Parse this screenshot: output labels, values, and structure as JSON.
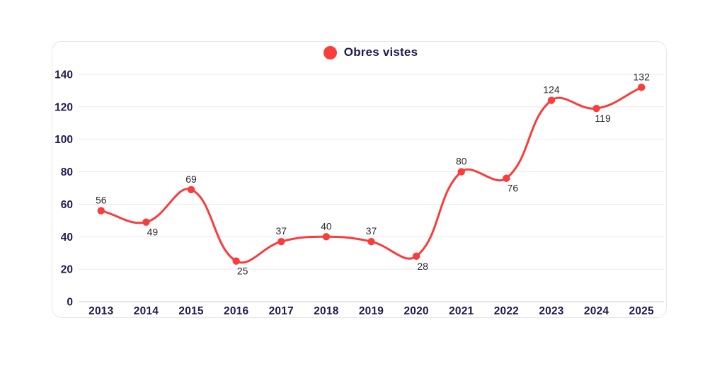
{
  "legend": {
    "label": "Obres vistes"
  },
  "chart_data": {
    "type": "line",
    "title": "",
    "xlabel": "",
    "ylabel": "",
    "categories": [
      "2013",
      "2014",
      "2015",
      "2016",
      "2017",
      "2018",
      "2019",
      "2020",
      "2021",
      "2022",
      "2023",
      "2024",
      "2025"
    ],
    "series": [
      {
        "name": "Obres vistes",
        "values": [
          56,
          49,
          69,
          25,
          37,
          40,
          37,
          28,
          80,
          76,
          124,
          119,
          132
        ]
      }
    ],
    "label_positions": [
      "above",
      "below",
      "above",
      "below",
      "above",
      "above",
      "above",
      "below",
      "above",
      "below",
      "above",
      "below",
      "above"
    ],
    "ylim": [
      0,
      140
    ],
    "y_ticks": [
      0,
      20,
      40,
      60,
      80,
      100,
      120,
      140
    ],
    "grid": true,
    "smooth": true,
    "legend_position": "top-center"
  },
  "colors": {
    "series_red": "#f93c3c",
    "axis_text": "#221a4e",
    "data_label": "#2a2a2a",
    "gridline": "#ededed",
    "axis_line": "#d5d5d5",
    "card_border": "#e6e6e9",
    "background": "#ffffff"
  }
}
